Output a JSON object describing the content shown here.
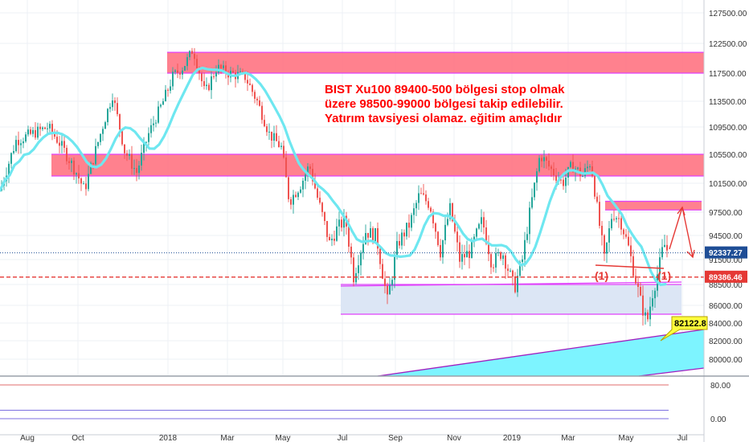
{
  "chart_data": {
    "type": "candlestick",
    "annotation": {
      "lines": [
        "BIST Xu100 89400-500 bölgesi stop olmak",
        "üzere 98500-99000 bölgesi takip edilebilir.",
        "Yatırım tavsiyesi olamaz. eğitim amaçlıdır"
      ],
      "color": "#ff0000"
    },
    "price_axis": {
      "ticks": [
        "127500.00",
        "122500.00",
        "117500.00",
        "113500.00",
        "109500.00",
        "105500.00",
        "101500.00",
        "97500.00",
        "94500.00",
        "91500.00",
        "88500.00",
        "86000.00",
        "84000.00",
        "82000.00",
        "80000.00"
      ],
      "current_price_label": "92337.27",
      "current_price": 92337.27,
      "stop_label": "89386.46",
      "stop_price": 89386.46,
      "target_label": "82122.8",
      "target_price": 82122.8
    },
    "time_axis": {
      "ticks": [
        "Aug",
        "Oct",
        "2018",
        "Mar",
        "May",
        "Jul",
        "Sep",
        "Nov",
        "2019",
        "Mar",
        "May",
        "Jul"
      ]
    },
    "markers": [
      "(1)",
      "(1)"
    ],
    "zones": [
      {
        "name": "upper-resistance",
        "from": 117500,
        "to": 121000,
        "color": "#ff6b7a"
      },
      {
        "name": "middle-resistance",
        "from": 102500,
        "to": 105500,
        "color": "#ff6b7a"
      },
      {
        "name": "target-resistance",
        "from": 97800,
        "to": 99000,
        "color": "#ff6b7a"
      },
      {
        "name": "support-zone",
        "from": 85000,
        "to": 88500,
        "color": "#dce6f5"
      }
    ],
    "indicator": {
      "ticks": [
        "80.00",
        "0.00"
      ],
      "levels": [
        80,
        20,
        0
      ]
    },
    "colors": {
      "up": "#26a69a",
      "down": "#ef5350",
      "moving_average": "#6ee7f0",
      "channel": "#7df4ff",
      "guide_lines": "#e040fb",
      "current_price": "#1f4e96",
      "stop_line": "#e53935"
    }
  }
}
